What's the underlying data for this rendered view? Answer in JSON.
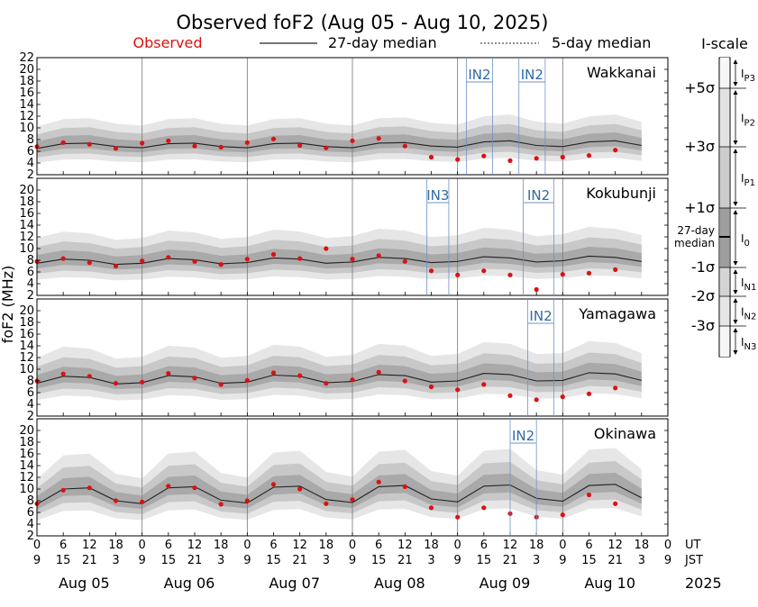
{
  "title": "Observed foF2 (Aug 05 - Aug 10, 2025)",
  "legend": {
    "observed": "Observed",
    "median27": "27-day median",
    "median5": "5-day median"
  },
  "ylabel": "foF2 (MHz)",
  "colors": {
    "observed": "#dd1111",
    "median": "#222222",
    "band_outer": "#e6e6e6",
    "band_mid": "#c8c8c8",
    "band_inner": "#a9a9a9",
    "index_label": "#2f6aa3"
  },
  "ut_label": "UT",
  "jst_label": "JST",
  "year_label": "2025",
  "x_ticks_ut": [
    "0",
    "6",
    "12",
    "18",
    "0",
    "6",
    "12",
    "18",
    "0",
    "6",
    "12",
    "18",
    "0",
    "6",
    "12",
    "18",
    "0",
    "6",
    "12",
    "18",
    "0",
    "6",
    "12",
    "18",
    "0"
  ],
  "x_ticks_jst": [
    "9",
    "15",
    "21",
    "3",
    "9",
    "15",
    "21",
    "3",
    "9",
    "15",
    "21",
    "3",
    "9",
    "15",
    "21",
    "3",
    "9",
    "15",
    "21",
    "3",
    "9",
    "15",
    "21",
    "3",
    "9"
  ],
  "dates": [
    "Aug 05",
    "Aug 06",
    "Aug 07",
    "Aug 08",
    "Aug 09",
    "Aug 10"
  ],
  "iscale": {
    "title": "I-scale",
    "sigma_labels": [
      "+5σ",
      "+3σ",
      "+1σ",
      "-1σ",
      "-2σ",
      "-3σ"
    ],
    "median_label": [
      "27-day",
      "median"
    ],
    "categories": [
      "IP3",
      "IP2",
      "IP1",
      "I0",
      "IN1",
      "IN2",
      "IN3"
    ]
  },
  "chart_data": [
    {
      "type": "line",
      "station": "Wakkanai",
      "x_label": "Hours since Aug 05 00 UT",
      "ylim": [
        2,
        22
      ],
      "yticks": [
        2,
        4,
        6,
        8,
        10,
        12,
        14,
        16,
        18,
        20,
        22
      ],
      "xlim": [
        0,
        144
      ],
      "observed_hours": [
        0,
        6,
        12,
        18,
        24,
        30,
        36,
        42,
        48,
        54,
        60,
        66,
        72,
        78,
        84,
        90,
        96,
        102,
        108,
        114,
        120,
        126,
        132,
        138
      ],
      "series": [
        {
          "name": "Observed",
          "values": [
            6.8,
            7.5,
            7.2,
            6.5,
            7.4,
            7.8,
            6.9,
            6.7,
            7.5,
            8.1,
            7.0,
            6.6,
            7.8,
            8.2,
            6.9,
            5.0,
            4.6,
            5.2,
            4.4,
            4.8,
            5.0,
            5.3,
            6.2,
            null
          ]
        },
        {
          "name": "27-day median",
          "values": [
            6.5,
            7.3,
            7.4,
            6.8,
            6.6,
            7.3,
            7.4,
            6.8,
            6.6,
            7.3,
            7.4,
            6.8,
            6.6,
            7.4,
            7.5,
            6.9,
            6.7,
            7.6,
            7.8,
            7.0,
            6.8,
            7.6,
            7.8,
            7.0
          ]
        }
      ],
      "indices": [
        {
          "label": "IN2",
          "start_hour": 98,
          "end_hour": 104
        },
        {
          "label": "IN2",
          "start_hour": 110,
          "end_hour": 116
        }
      ]
    },
    {
      "type": "line",
      "station": "Kokubunji",
      "x_label": "Hours since Aug 05 00 UT",
      "ylim": [
        2,
        22
      ],
      "yticks": [
        2,
        4,
        6,
        8,
        10,
        12,
        14,
        16,
        18,
        20
      ],
      "xlim": [
        0,
        144
      ],
      "observed_hours": [
        0,
        6,
        12,
        18,
        24,
        30,
        36,
        42,
        48,
        54,
        60,
        66,
        72,
        78,
        84,
        90,
        96,
        102,
        108,
        114,
        120,
        126,
        132,
        138
      ],
      "series": [
        {
          "name": "Observed",
          "values": [
            7.8,
            8.3,
            7.6,
            7.0,
            7.9,
            8.5,
            7.8,
            7.3,
            8.2,
            9.0,
            8.3,
            10.0,
            8.2,
            8.8,
            7.8,
            6.2,
            5.5,
            6.2,
            5.5,
            3.0,
            5.6,
            5.8,
            6.4,
            null
          ]
        },
        {
          "name": "27-day median",
          "values": [
            7.5,
            8.2,
            8.0,
            7.3,
            7.5,
            8.3,
            8.1,
            7.4,
            7.6,
            8.4,
            8.2,
            7.5,
            7.7,
            8.5,
            8.3,
            7.6,
            7.8,
            8.6,
            8.4,
            7.7,
            7.9,
            8.7,
            8.5,
            7.8
          ]
        }
      ],
      "indices": [
        {
          "label": "IN3",
          "start_hour": 89,
          "end_hour": 94
        },
        {
          "label": "IN2",
          "start_hour": 111,
          "end_hour": 118
        }
      ]
    },
    {
      "type": "line",
      "station": "Yamagawa",
      "x_label": "Hours since Aug 05 00 UT",
      "ylim": [
        2,
        22
      ],
      "yticks": [
        2,
        4,
        6,
        8,
        10,
        12,
        14,
        16,
        18,
        20
      ],
      "xlim": [
        0,
        144
      ],
      "observed_hours": [
        0,
        6,
        12,
        18,
        24,
        30,
        36,
        42,
        48,
        54,
        60,
        66,
        72,
        78,
        84,
        90,
        96,
        102,
        108,
        114,
        120,
        126,
        132,
        138
      ],
      "series": [
        {
          "name": "Observed",
          "values": [
            8.0,
            9.2,
            8.8,
            7.6,
            7.8,
            9.3,
            8.5,
            7.4,
            8.1,
            9.4,
            8.9,
            7.6,
            8.2,
            9.5,
            8.0,
            7.0,
            6.5,
            7.4,
            5.5,
            4.8,
            5.3,
            5.8,
            6.8,
            null
          ]
        },
        {
          "name": "27-day median",
          "values": [
            7.6,
            8.8,
            8.6,
            7.5,
            7.7,
            8.9,
            8.7,
            7.6,
            7.8,
            9.0,
            8.8,
            7.7,
            7.9,
            9.1,
            8.9,
            7.8,
            8.0,
            9.3,
            9.1,
            8.0,
            8.1,
            9.4,
            9.2,
            8.1
          ]
        }
      ],
      "indices": [
        {
          "label": "IN2",
          "start_hour": 112,
          "end_hour": 118
        }
      ]
    },
    {
      "type": "line",
      "station": "Okinawa",
      "x_label": "Hours since Aug 05 00 UT",
      "ylim": [
        2,
        22
      ],
      "yticks": [
        2,
        4,
        6,
        8,
        10,
        12,
        14,
        16,
        18,
        20
      ],
      "xlim": [
        0,
        144
      ],
      "observed_hours": [
        0,
        6,
        12,
        18,
        24,
        30,
        36,
        42,
        48,
        54,
        60,
        66,
        72,
        78,
        84,
        90,
        96,
        102,
        108,
        114,
        120,
        126,
        132,
        138
      ],
      "series": [
        {
          "name": "Observed",
          "values": [
            7.5,
            9.8,
            10.2,
            8.0,
            7.8,
            10.5,
            10.2,
            7.4,
            8.0,
            10.8,
            10.0,
            7.5,
            8.2,
            11.2,
            10.4,
            6.8,
            5.2,
            6.8,
            5.8,
            5.2,
            5.6,
            9.0,
            7.5,
            null
          ]
        },
        {
          "name": "27-day median",
          "values": [
            7.4,
            10.0,
            10.2,
            8.0,
            7.5,
            10.2,
            10.4,
            8.1,
            7.6,
            10.3,
            10.5,
            8.2,
            7.7,
            10.4,
            10.6,
            8.3,
            7.8,
            10.5,
            10.7,
            8.4,
            7.9,
            10.6,
            10.8,
            8.5
          ]
        }
      ],
      "indices": [
        {
          "label": "IN2",
          "start_hour": 108,
          "end_hour": 114
        }
      ]
    }
  ]
}
